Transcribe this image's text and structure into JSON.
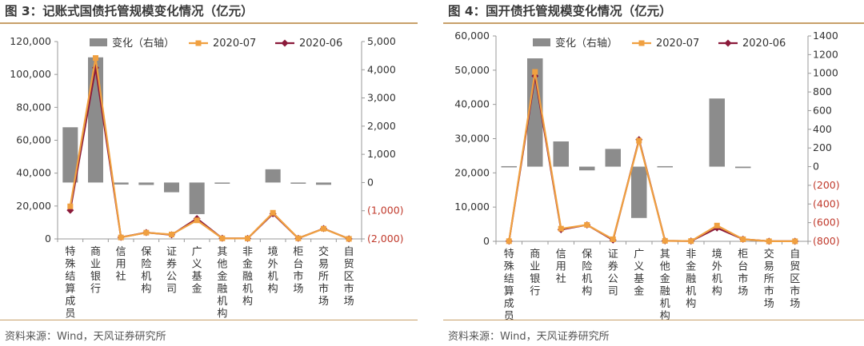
{
  "figures": [
    {
      "title": "图 3：记账式国债托管规模变化情况（亿元）",
      "source": "资料来源：Wind，天风证券研究所"
    },
    {
      "title": "图 4：国开债托管规模变化情况（亿元）",
      "source": "资料来源：Wind，天风证券研究所"
    }
  ],
  "chart_data": [
    {
      "type": "bar+line",
      "categories": [
        "特殊结算成员",
        "商业银行",
        "信用社",
        "保险机构",
        "证券公司",
        "广义基金",
        "其他金融机构",
        "非金融机构",
        "境外机构",
        "柜台市场",
        "交易所市场",
        "自贸区市场"
      ],
      "series": [
        {
          "name": "变化（右轴）",
          "type": "bar",
          "axis": "right",
          "color": "#8c8c8c",
          "values": [
            1960,
            4440,
            -70,
            -85,
            -345,
            -1120,
            -40,
            0,
            470,
            -8,
            -80,
            0
          ]
        },
        {
          "name": "2020-07",
          "type": "line",
          "axis": "left",
          "color": "#f0a040",
          "values": [
            19800,
            110000,
            900,
            3800,
            2700,
            11300,
            350,
            300,
            15900,
            380,
            6200,
            50
          ]
        },
        {
          "name": "2020-06",
          "type": "line",
          "axis": "left",
          "color": "#8b1a3a",
          "values": [
            17400,
            104000,
            950,
            3900,
            2500,
            12400,
            400,
            290,
            15300,
            380,
            6300,
            50
          ]
        }
      ],
      "y_left": {
        "ylim": [
          0,
          120000
        ],
        "ticks": [
          "0",
          "20,000",
          "40,000",
          "60,000",
          "80,000",
          "100,000",
          "120,000"
        ]
      },
      "y_right": {
        "ylim": [
          -2000,
          5000
        ],
        "ticks": [
          "(2,000)",
          "(1,000)",
          "0",
          "1,000",
          "2,000",
          "3,000",
          "4,000",
          "5,000"
        ]
      },
      "legend": {
        "placement": "top",
        "items": [
          "变化（右轴）",
          "2020-07",
          "2020-06"
        ]
      },
      "grid": false
    },
    {
      "type": "bar+line",
      "categories": [
        "特殊结算成员",
        "商业银行",
        "信用社",
        "保险机构",
        "证券公司",
        "广义基金",
        "其他金融机构",
        "非金融机构",
        "境外机构",
        "柜台市场",
        "交易所市场",
        "自贸区市场"
      ],
      "series": [
        {
          "name": "变化（右轴）",
          "type": "bar",
          "axis": "right",
          "color": "#8c8c8c",
          "values": [
            5,
            1160,
            270,
            -40,
            190,
            -550,
            5,
            0,
            730,
            -15,
            0,
            0
          ]
        },
        {
          "name": "2020-07",
          "type": "line",
          "axis": "left",
          "color": "#f0a040",
          "values": [
            50,
            49500,
            3700,
            4800,
            600,
            29400,
            150,
            80,
            4600,
            600,
            20,
            20
          ]
        },
        {
          "name": "2020-06",
          "type": "line",
          "axis": "left",
          "color": "#8b1a3a",
          "values": [
            45,
            48300,
            3400,
            4800,
            380,
            29700,
            140,
            80,
            3900,
            620,
            20,
            20
          ]
        }
      ],
      "y_left": {
        "ylim": [
          0,
          60000
        ],
        "ticks": [
          "0",
          "10,000",
          "20,000",
          "30,000",
          "40,000",
          "50,000",
          "60,000"
        ]
      },
      "y_right": {
        "ylim": [
          -800,
          1400
        ],
        "ticks": [
          "(800)",
          "(600)",
          "(400)",
          "(200)",
          "0",
          "200",
          "400",
          "600",
          "800",
          "1000",
          "1200",
          "1400"
        ]
      },
      "legend": {
        "placement": "top",
        "items": [
          "变化（右轴）",
          "2020-07",
          "2020-06"
        ]
      },
      "grid": false
    }
  ]
}
